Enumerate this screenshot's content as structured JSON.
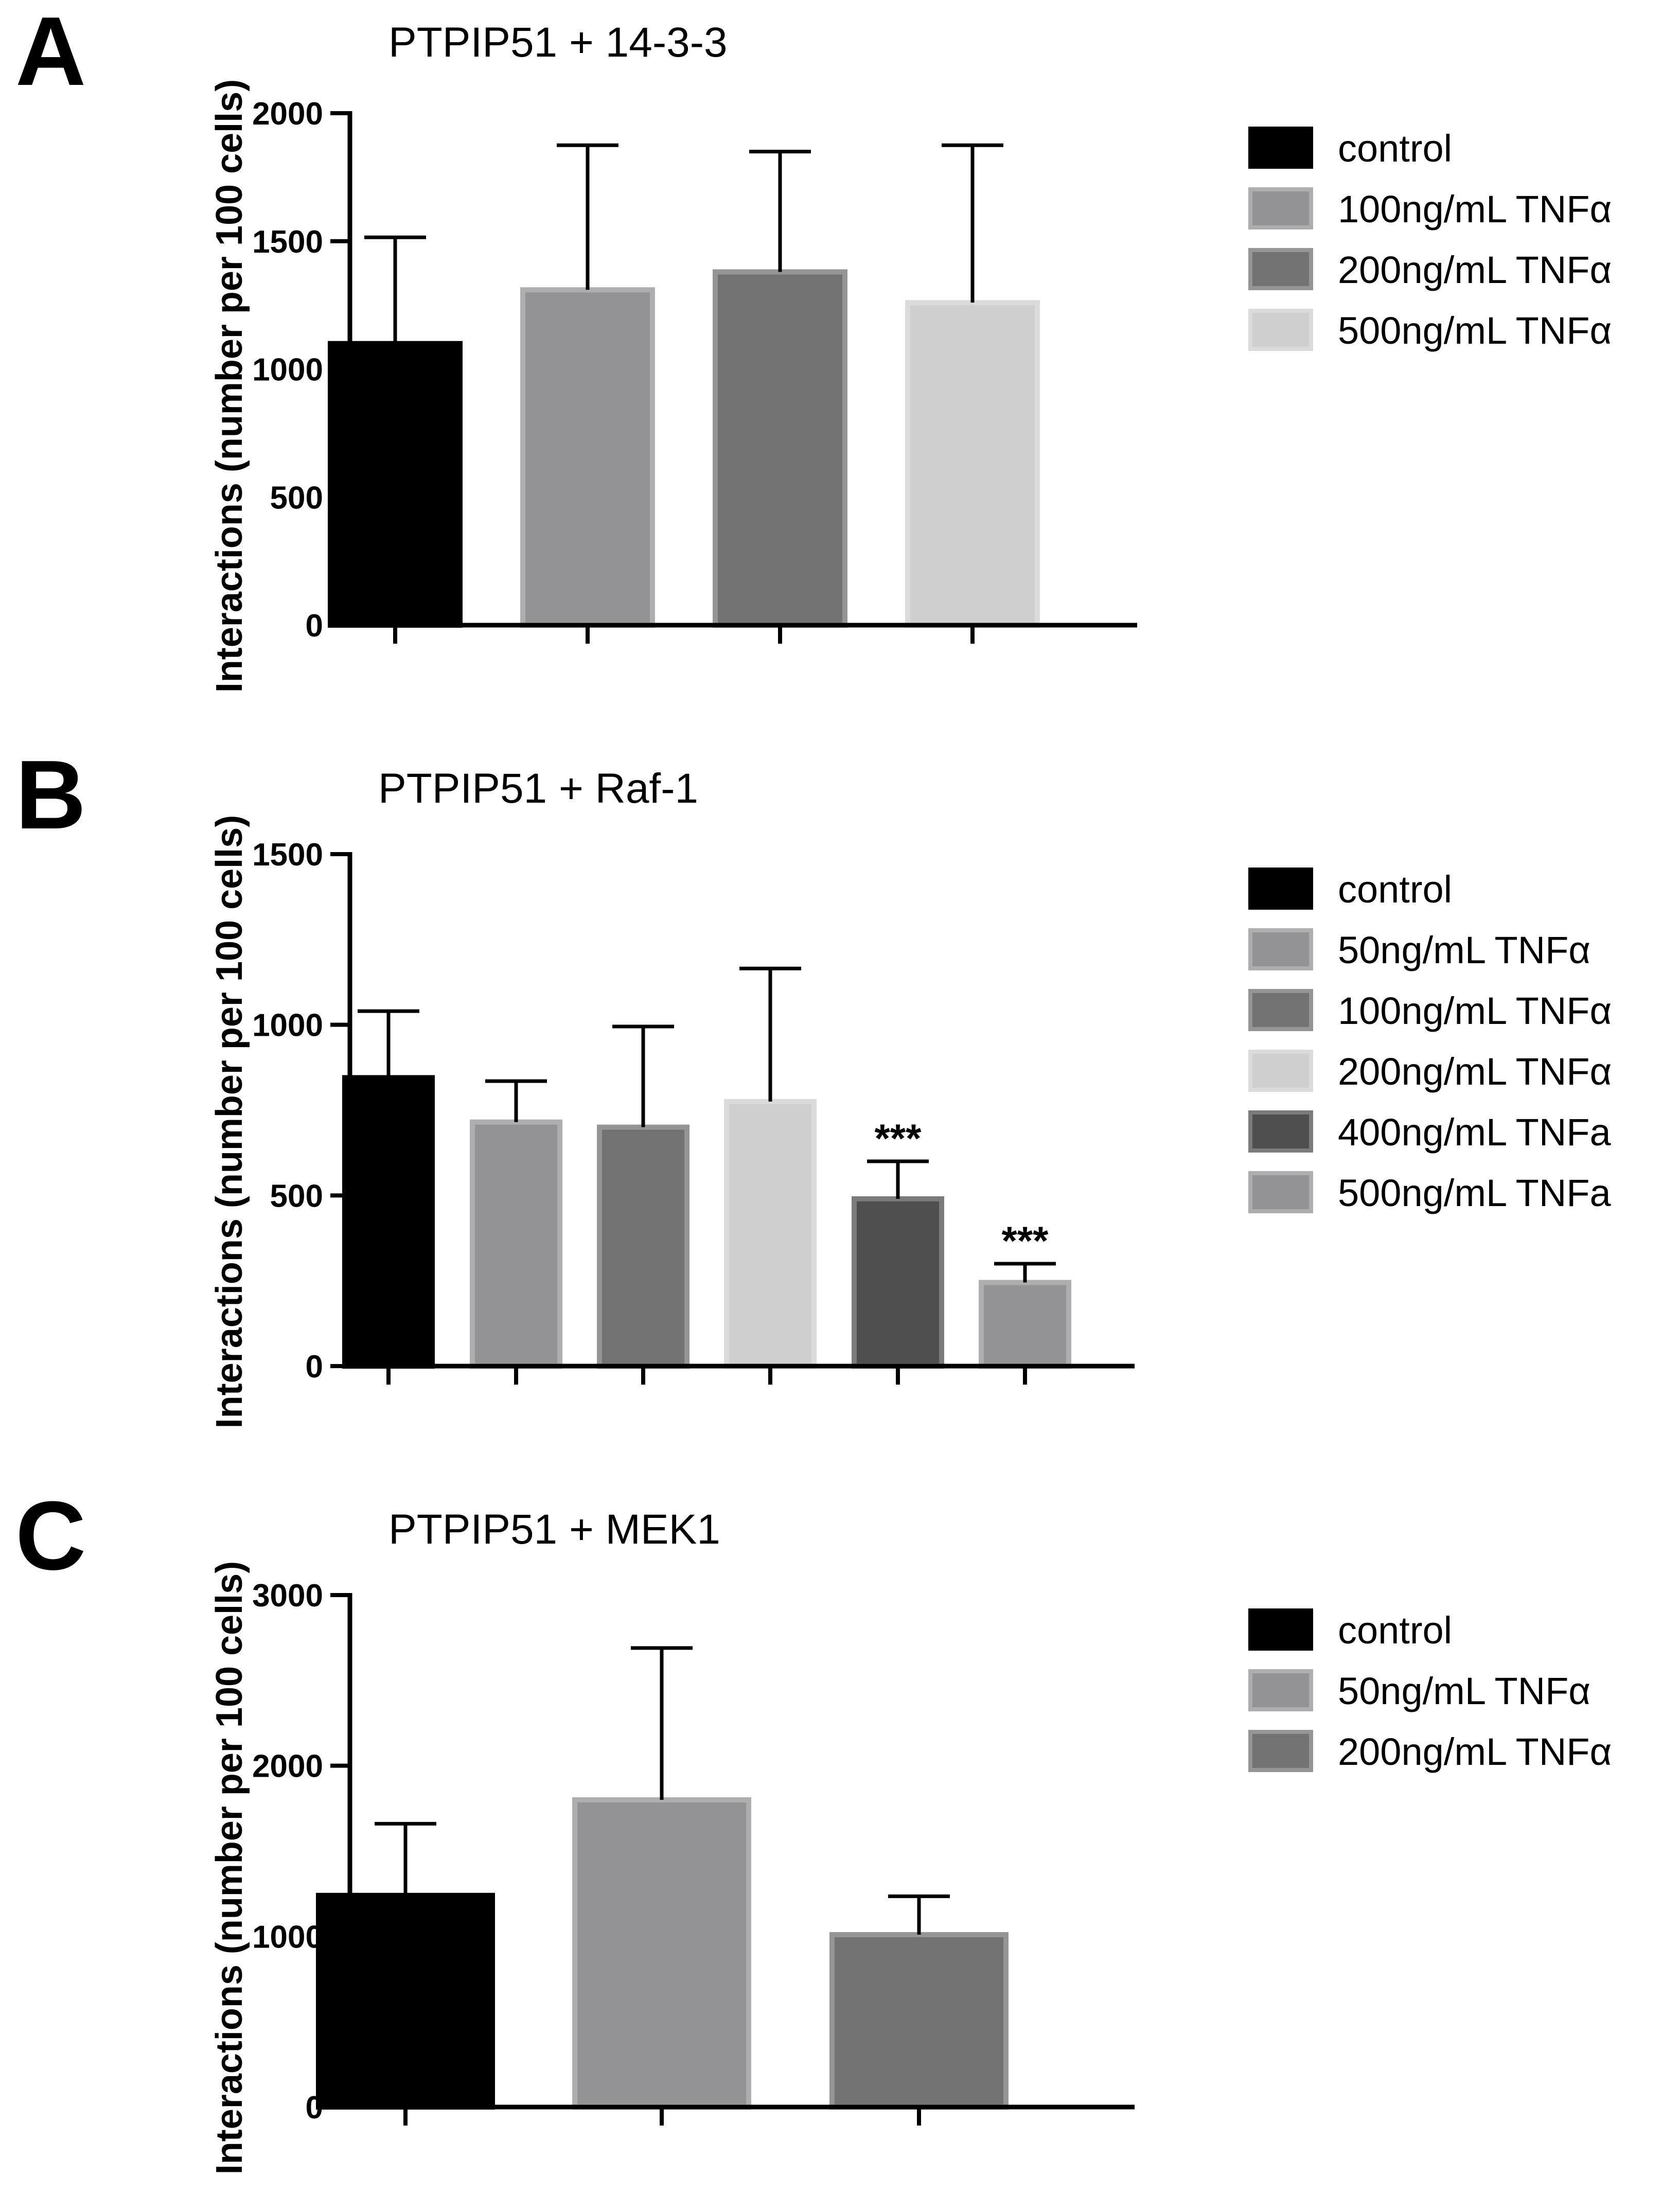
{
  "figure": {
    "panels": [
      "A",
      "B",
      "C"
    ]
  },
  "chart_data": [
    {
      "panel": "A",
      "type": "bar",
      "title": "PTPIP51 + 14-3-3",
      "ylabel": "Interactions (number per 100 cells)",
      "ylim": [
        0,
        2000
      ],
      "yticks": [
        0,
        500,
        1000,
        1500,
        2000
      ],
      "legend_position": "right",
      "categories": [
        "control",
        "100ng/mL TNFα",
        "200ng/mL TNFα",
        "500ng/mL TNFα"
      ],
      "values": [
        1100,
        1310,
        1380,
        1260
      ],
      "errors": [
        415,
        565,
        470,
        615
      ],
      "colors": [
        "#000000",
        "#939396",
        "#727272",
        "#cfcfcf"
      ],
      "annotations": [
        "",
        "",
        "",
        ""
      ]
    },
    {
      "panel": "B",
      "type": "bar",
      "title": "PTPIP51 + Raf-1",
      "ylabel": "Interactions (number per 100 cells)",
      "ylim": [
        0,
        1500
      ],
      "yticks": [
        0,
        500,
        1000,
        1500
      ],
      "legend_position": "right",
      "categories": [
        "control",
        "50ng/mL TNFα",
        "100ng/mL TNFα",
        "200ng/mL TNFα",
        "400ng/mL TNFa",
        "500ng/mL TNFa"
      ],
      "values": [
        845,
        715,
        700,
        775,
        490,
        245
      ],
      "errors": [
        195,
        120,
        295,
        390,
        110,
        55
      ],
      "colors": [
        "#000000",
        "#939396",
        "#727272",
        "#cfcfcf",
        "#4f4f4f",
        "#939396"
      ],
      "annotations": [
        "",
        "",
        "",
        "",
        "***",
        "***"
      ]
    },
    {
      "panel": "C",
      "type": "bar",
      "title": "PTPIP51 + MEK1",
      "ylabel": "Interactions (number per 100 cells)",
      "ylim": [
        0,
        3000
      ],
      "yticks": [
        0,
        1000,
        2000,
        3000
      ],
      "legend_position": "right",
      "categories": [
        "control",
        "50ng/mL TNFα",
        "200ng/mL TNFα"
      ],
      "values": [
        1240,
        1800,
        1010
      ],
      "errors": [
        420,
        890,
        225
      ],
      "colors": [
        "#000000",
        "#939396",
        "#727272"
      ],
      "annotations": [
        "",
        "",
        ""
      ]
    }
  ]
}
